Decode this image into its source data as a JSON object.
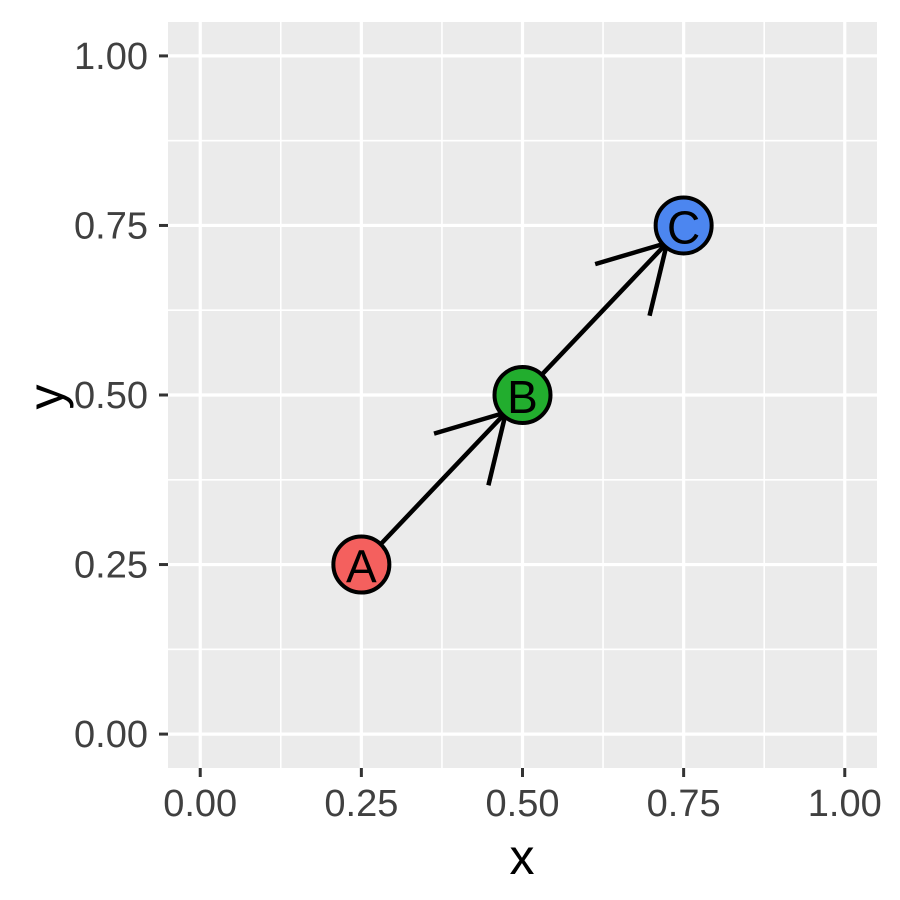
{
  "chart_data": {
    "type": "scatter",
    "title": "",
    "xlabel": "x",
    "ylabel": "y",
    "xlim": [
      -0.05,
      1.05
    ],
    "ylim": [
      -0.05,
      1.05
    ],
    "grid": "major+minor",
    "legend": "none",
    "x_ticks": {
      "values": [
        0,
        0.25,
        0.5,
        0.75,
        1
      ],
      "labels": [
        "0.00",
        "0.25",
        "0.50",
        "0.75",
        "1.00"
      ]
    },
    "y_ticks": {
      "values": [
        0,
        0.25,
        0.5,
        0.75,
        1
      ],
      "labels": [
        "0.00",
        "0.25",
        "0.50",
        "0.75",
        "1.00"
      ]
    },
    "points": [
      {
        "label": "A",
        "x": 0.25,
        "y": 0.25,
        "fill": "#F4605E"
      },
      {
        "label": "B",
        "x": 0.5,
        "y": 0.5,
        "fill": "#22AD2E"
      },
      {
        "label": "C",
        "x": 0.75,
        "y": 0.75,
        "fill": "#4C86F0"
      }
    ],
    "edges": [
      {
        "from": "A",
        "to": "B"
      },
      {
        "from": "B",
        "to": "C"
      }
    ],
    "style": {
      "panel_bg": "#EBEBEB",
      "grid_color": "#FFFFFF",
      "point_outline": "#000000",
      "arrow_color": "#000000",
      "tick_mark_color": "#333333",
      "tick_label_color": "#404040",
      "axis_title_color": "#000000"
    }
  }
}
